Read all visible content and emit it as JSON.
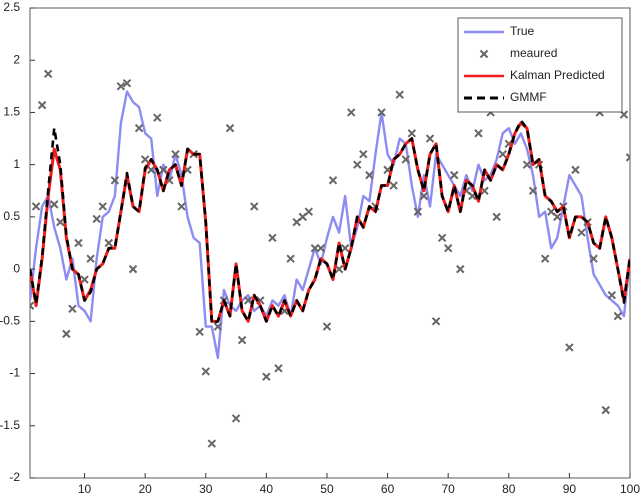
{
  "chart_data": {
    "type": "line",
    "x": [
      1,
      2,
      3,
      4,
      5,
      6,
      7,
      8,
      9,
      10,
      11,
      12,
      13,
      14,
      15,
      16,
      17,
      18,
      19,
      20,
      21,
      22,
      23,
      24,
      25,
      26,
      27,
      28,
      29,
      30,
      31,
      32,
      33,
      34,
      35,
      36,
      37,
      38,
      39,
      40,
      41,
      42,
      43,
      44,
      45,
      46,
      47,
      48,
      49,
      50,
      51,
      52,
      53,
      54,
      55,
      56,
      57,
      58,
      59,
      60,
      61,
      62,
      63,
      64,
      65,
      66,
      67,
      68,
      69,
      70,
      71,
      72,
      73,
      74,
      75,
      76,
      77,
      78,
      79,
      80,
      81,
      82,
      83,
      84,
      85,
      86,
      87,
      88,
      89,
      90,
      91,
      92,
      93,
      94,
      95,
      96,
      97,
      98,
      99,
      100
    ],
    "xlim": [
      1,
      100
    ],
    "xticks": [
      10,
      20,
      30,
      40,
      50,
      60,
      70,
      80,
      90,
      100
    ],
    "ylim": [
      -2,
      2.5
    ],
    "yticks": [
      -2,
      -1.5,
      -1,
      -0.5,
      0,
      0.5,
      1,
      1.5,
      2,
      2.5
    ],
    "legend": "upper right",
    "series": [
      {
        "name": "True",
        "color": "#8c8cf2",
        "style": "line",
        "values": [
          -0.3,
          0.2,
          0.6,
          0.7,
          0.4,
          0.2,
          -0.1,
          0.1,
          -0.35,
          -0.4,
          -0.5,
          0.1,
          0.5,
          0.55,
          0.7,
          1.4,
          1.7,
          1.6,
          1.55,
          1.3,
          1.25,
          0.7,
          1.0,
          0.85,
          1.1,
          0.9,
          0.5,
          0.3,
          0.25,
          -0.55,
          -0.55,
          -0.85,
          -0.2,
          -0.35,
          -0.4,
          -0.3,
          -0.25,
          -0.4,
          -0.35,
          -0.45,
          -0.3,
          -0.35,
          -0.25,
          -0.45,
          -0.1,
          -0.2,
          0.0,
          0.2,
          0.05,
          0.3,
          0.5,
          0.35,
          0.7,
          0.2,
          0.4,
          0.7,
          0.65,
          1.1,
          1.5,
          1.1,
          1.0,
          1.25,
          1.2,
          0.8,
          0.5,
          0.9,
          0.6,
          1.1,
          1.0,
          0.9,
          0.8,
          0.7,
          0.9,
          0.75,
          1.0,
          0.85,
          0.9,
          1.05,
          1.3,
          1.35,
          1.2,
          1.3,
          1.15,
          0.9,
          0.5,
          0.55,
          0.2,
          0.3,
          0.6,
          0.9,
          0.8,
          0.7,
          0.3,
          -0.05,
          -0.15,
          -0.25,
          -0.3,
          -0.35,
          -0.45,
          0.1
        ]
      },
      {
        "name": "meaured",
        "color": "#666666",
        "style": "marker",
        "values": [
          -0.35,
          0.6,
          1.57,
          1.87,
          0.62,
          0.45,
          -0.62,
          -0.38,
          0.25,
          -0.1,
          0.1,
          0.48,
          0.6,
          0.25,
          0.85,
          1.75,
          1.78,
          0.0,
          1.35,
          1.05,
          0.95,
          1.45,
          0.95,
          0.85,
          1.1,
          0.6,
          0.95,
          1.1,
          -0.6,
          -0.98,
          -1.67,
          -0.55,
          -0.3,
          1.35,
          -1.43,
          -0.68,
          -0.3,
          0.6,
          -0.3,
          -1.03,
          0.3,
          -0.95,
          -0.4,
          0.1,
          0.45,
          0.5,
          0.55,
          0.2,
          0.2,
          -0.55,
          0.85,
          0.0,
          0.2,
          1.5,
          1.0,
          1.1,
          0.9,
          0.6,
          1.5,
          0.95,
          0.8,
          1.67,
          1.05,
          1.3,
          0.55,
          0.7,
          1.25,
          -0.5,
          0.3,
          0.2,
          0.9,
          0.0,
          0.75,
          0.7,
          1.3,
          0.75,
          1.5,
          0.5,
          1.1,
          1.2,
          1.65,
          1.65,
          1.0,
          0.75,
          1.0,
          0.1,
          0.55,
          0.5,
          0.6,
          -0.75,
          0.95,
          0.35,
          0.45,
          0.1,
          1.5,
          -1.35,
          -0.25,
          -0.45,
          1.48,
          1.07
        ]
      },
      {
        "name": "Kalman Predicted",
        "color": "#ee1c1c",
        "style": "line",
        "values": [
          0.0,
          -0.35,
          0.1,
          0.7,
          1.15,
          0.95,
          0.3,
          0.0,
          -0.05,
          -0.3,
          -0.2,
          0.0,
          0.05,
          0.2,
          0.2,
          0.55,
          0.9,
          0.6,
          0.55,
          0.95,
          1.05,
          0.95,
          0.75,
          0.95,
          1.0,
          0.8,
          1.15,
          1.1,
          1.1,
          0.45,
          -0.5,
          -0.5,
          -0.3,
          -0.45,
          0.05,
          -0.4,
          -0.5,
          -0.25,
          -0.35,
          -0.5,
          -0.35,
          -0.45,
          -0.3,
          -0.45,
          -0.3,
          -0.4,
          -0.2,
          -0.1,
          0.1,
          0.05,
          -0.1,
          0.25,
          0.0,
          0.2,
          0.5,
          0.4,
          0.6,
          0.55,
          0.8,
          0.8,
          1.05,
          1.1,
          1.2,
          1.25,
          0.95,
          0.75,
          1.1,
          1.2,
          0.7,
          0.55,
          0.8,
          0.55,
          0.85,
          0.8,
          0.65,
          0.95,
          0.85,
          1.0,
          0.95,
          1.1,
          1.3,
          1.4,
          1.35,
          1.0,
          1.05,
          0.7,
          0.65,
          0.55,
          0.6,
          0.3,
          0.5,
          0.5,
          0.45,
          0.25,
          0.2,
          0.5,
          0.3,
          0.0,
          -0.3,
          0.1
        ]
      },
      {
        "name": "GMMF",
        "color": "#000000",
        "style": "dashed",
        "values": [
          0.0,
          -0.33,
          0.12,
          0.75,
          1.35,
          1.0,
          0.32,
          0.0,
          -0.05,
          -0.3,
          -0.22,
          0.0,
          0.05,
          0.2,
          0.2,
          0.55,
          0.92,
          0.6,
          0.55,
          0.97,
          1.05,
          0.95,
          0.75,
          0.95,
          1.0,
          0.8,
          1.15,
          1.1,
          1.1,
          0.45,
          -0.52,
          -0.5,
          -0.3,
          -0.45,
          0.05,
          -0.4,
          -0.5,
          -0.25,
          -0.35,
          -0.5,
          -0.35,
          -0.45,
          -0.3,
          -0.45,
          -0.3,
          -0.4,
          -0.2,
          -0.1,
          0.1,
          0.05,
          -0.1,
          0.25,
          0.0,
          0.2,
          0.5,
          0.4,
          0.6,
          0.55,
          0.8,
          0.8,
          1.05,
          1.1,
          1.2,
          1.25,
          0.95,
          0.75,
          1.1,
          1.2,
          0.7,
          0.55,
          0.8,
          0.55,
          0.85,
          0.8,
          0.65,
          0.95,
          0.85,
          1.0,
          0.95,
          1.1,
          1.3,
          1.42,
          1.35,
          1.0,
          1.05,
          0.7,
          0.65,
          0.55,
          0.6,
          0.3,
          0.5,
          0.5,
          0.45,
          0.25,
          0.2,
          0.5,
          0.3,
          0.0,
          -0.32,
          0.12
        ]
      }
    ]
  }
}
